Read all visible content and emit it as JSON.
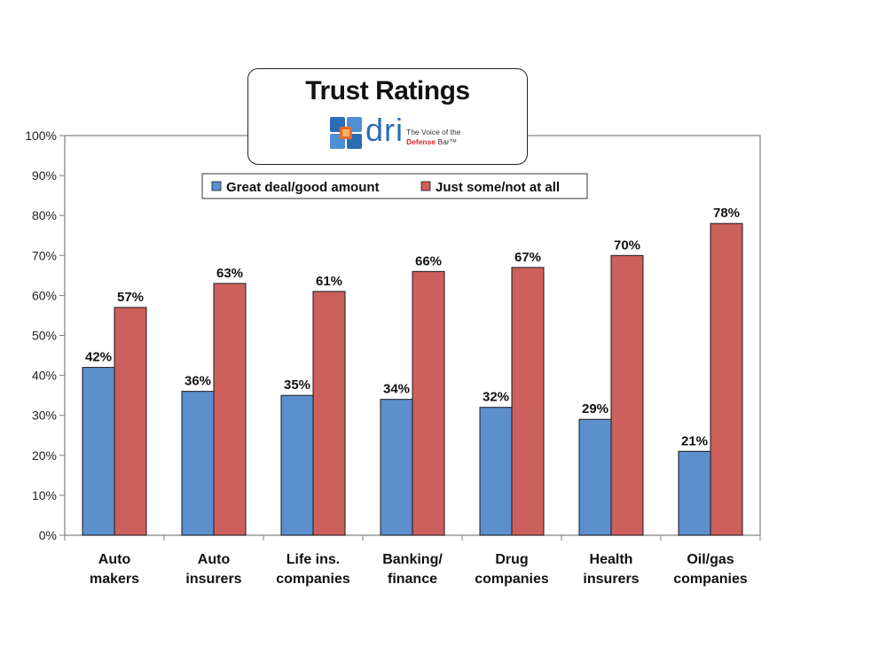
{
  "title": {
    "text": "Trust Ratings",
    "logo_word": "dri",
    "logo_tagline_1": "The Voice of the",
    "logo_tagline_2_accent": "Defense",
    "logo_tagline_2_rest": " Bar™"
  },
  "colors": {
    "series1": "#5b8fce",
    "series2": "#cc605c",
    "axis": "#7f7f7f"
  },
  "chart_data": {
    "type": "bar",
    "categories": [
      [
        "Auto",
        "makers"
      ],
      [
        "Auto",
        "insurers"
      ],
      [
        "Life ins.",
        "companies"
      ],
      [
        "Banking/",
        "finance"
      ],
      [
        "Drug",
        "companies"
      ],
      [
        "Health",
        "insurers"
      ],
      [
        "Oil/gas",
        "companies"
      ]
    ],
    "series": [
      {
        "name": "Great deal/good amount",
        "values": [
          42,
          36,
          35,
          34,
          32,
          29,
          21
        ],
        "labels": [
          "42%",
          "36%",
          "35%",
          "34%",
          "32%",
          "29%",
          "21%"
        ]
      },
      {
        "name": "Just some/not at all",
        "values": [
          57,
          63,
          61,
          66,
          67,
          70,
          78
        ],
        "labels": [
          "57%",
          "63%",
          "61%",
          "66%",
          "67%",
          "70%",
          "78%"
        ]
      }
    ],
    "yticks": [
      "0%",
      "10%",
      "20%",
      "30%",
      "40%",
      "50%",
      "60%",
      "70%",
      "80%",
      "90%",
      "100%"
    ],
    "ylim": [
      0,
      100
    ],
    "grid": false,
    "legend": "top-center",
    "xlabel": "",
    "ylabel": ""
  }
}
